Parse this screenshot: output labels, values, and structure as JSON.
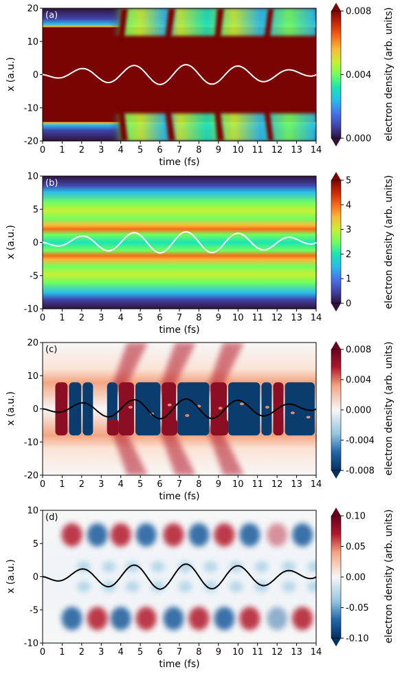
{
  "chart_data": [
    {
      "type": "heatmap",
      "panel_label": "(a)",
      "xlabel": "time (fs)",
      "ylabel": "x (a.u.)",
      "xlim": [
        0,
        14
      ],
      "ylim": [
        -20,
        20
      ],
      "x_ticks": [
        "0",
        "1",
        "2",
        "3",
        "4",
        "5",
        "6",
        "7",
        "8",
        "9",
        "10",
        "11",
        "12",
        "13",
        "14"
      ],
      "y_ticks": [
        "20",
        "10",
        "0",
        "-10",
        "-20"
      ],
      "colorbar_label": "electron density (arb. units)",
      "colorbar_ticks": [
        "0.008",
        "0.004",
        "0.000"
      ],
      "colormap": "turbo",
      "curve_color": "#ffffff",
      "field_amplitude": 3.0
    },
    {
      "type": "heatmap",
      "panel_label": "(b)",
      "xlabel": "time (fs)",
      "ylabel": "x (a.u.)",
      "xlim": [
        0,
        14
      ],
      "ylim": [
        -10,
        10
      ],
      "x_ticks": [
        "0",
        "1",
        "2",
        "3",
        "4",
        "5",
        "6",
        "7",
        "8",
        "9",
        "10",
        "11",
        "12",
        "13",
        "14"
      ],
      "y_ticks": [
        "10",
        "5",
        "0",
        "-5",
        "-10"
      ],
      "colorbar_label": "electron density (arb. units)",
      "colorbar_ticks": [
        "5",
        "4",
        "3",
        "2",
        "1",
        "0"
      ],
      "colormap": "turbo",
      "curve_color": "#ffffff",
      "field_amplitude": 1.6
    },
    {
      "type": "heatmap",
      "panel_label": "(c)",
      "xlabel": "time (fs)",
      "ylabel": "x (a.u.)",
      "xlim": [
        0,
        14
      ],
      "ylim": [
        -20,
        20
      ],
      "x_ticks": [
        "0",
        "1",
        "2",
        "3",
        "4",
        "5",
        "6",
        "7",
        "8",
        "9",
        "10",
        "11",
        "12",
        "13",
        "14"
      ],
      "y_ticks": [
        "20",
        "10",
        "0",
        "-10",
        "-20"
      ],
      "colorbar_label": "electron density (arb. units)",
      "colorbar_ticks": [
        "0.008",
        "0.004",
        "0.000",
        "-0.004",
        "-0.008"
      ],
      "colormap": "RdBu_r",
      "curve_color": "#000000",
      "field_amplitude": 3.0
    },
    {
      "type": "heatmap",
      "panel_label": "(d)",
      "xlabel": "time (fs)",
      "ylabel": "x (a.u.)",
      "xlim": [
        0,
        14
      ],
      "ylim": [
        -10,
        10
      ],
      "x_ticks": [
        "0",
        "1",
        "2",
        "3",
        "4",
        "5",
        "6",
        "7",
        "8",
        "9",
        "10",
        "11",
        "12",
        "13",
        "14"
      ],
      "y_ticks": [
        "10",
        "5",
        "0",
        "-5",
        "-10"
      ],
      "colorbar_label": "electron density (arb. units)",
      "colorbar_ticks": [
        "0.10",
        "0.05",
        "0.00",
        "-0.05",
        "-0.10"
      ],
      "colormap": "RdBu_r",
      "curve_color": "#000000",
      "field_amplitude": 1.9
    }
  ]
}
